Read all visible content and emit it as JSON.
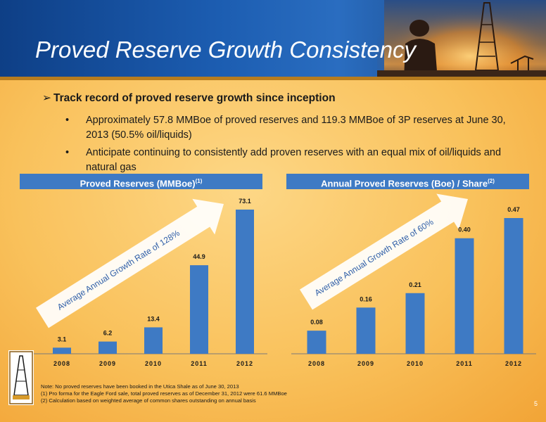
{
  "title": "Proved Reserve Growth Consistency",
  "main_bullet": "Track record of proved reserve growth since inception",
  "sub_bullets": [
    "Approximately 57.8 MMBoe of proved reserves and 119.3 MMBoe of 3P reserves at June 30, 2013 (50.5% oil/liquids)",
    "Anticipate continuing to consistently add proven reserves with an equal mix of oil/liquids and natural gas"
  ],
  "chart_data": [
    {
      "type": "bar",
      "title": "Proved Reserves (MMBoe)",
      "title_sup": "(1)",
      "categories": [
        "2008",
        "2009",
        "2010",
        "2011",
        "2012"
      ],
      "values": [
        3.1,
        6.2,
        13.4,
        44.9,
        73.1
      ],
      "value_labels": [
        "3.1",
        "6.2",
        "13.4",
        "44.9",
        "73.1"
      ],
      "arrow_label": "Average Annual Growth Rate of 128%",
      "color": "#3e7ac4"
    },
    {
      "type": "bar",
      "title": "Annual Proved Reserves (Boe) / Share",
      "title_sup": "(2)",
      "categories": [
        "2008",
        "2009",
        "2010",
        "2011",
        "2012"
      ],
      "values": [
        0.08,
        0.16,
        0.21,
        0.4,
        0.47
      ],
      "value_labels": [
        "0.08",
        "0.16",
        "0.21",
        "0.40",
        "0.47"
      ],
      "arrow_label": "Average Annual Growth Rate of 60%",
      "color": "#3e7ac4"
    }
  ],
  "notes": [
    "Note: No proved reserves have been booked in the Utica Shale as of June 30, 2013",
    "(1) Pro forma for the Eagle Ford sale, total proved reserves as of December 31, 2012 were 61.6 MMBoe",
    "(2) Calculation based on weighted average of common shares outstanding on annual basis"
  ],
  "page_number": "5",
  "arrow_glyph": "➢",
  "bullet_glyph": "•"
}
